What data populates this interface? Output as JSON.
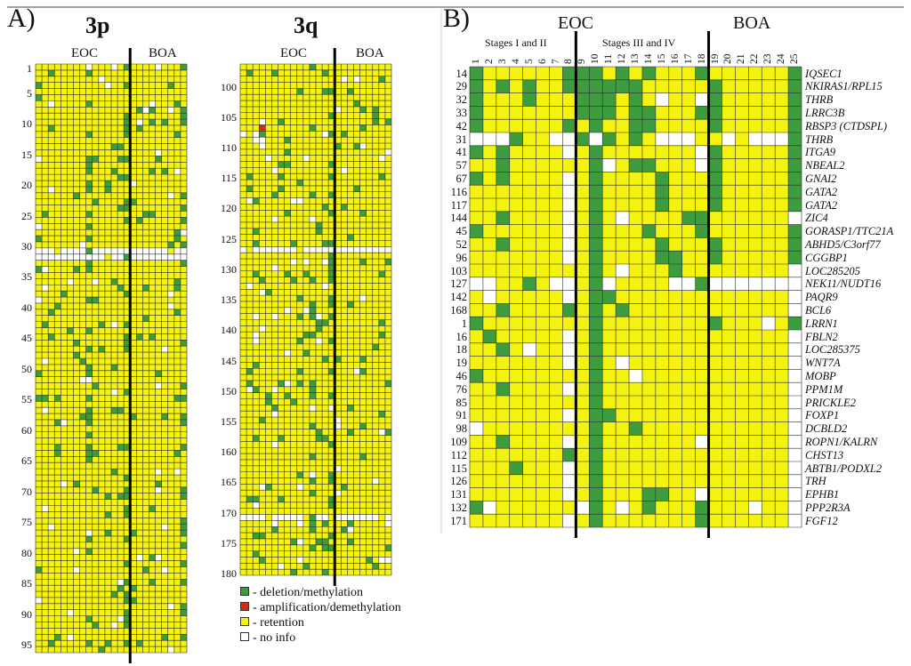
{
  "colors": {
    "deletion": "#3d9c3d",
    "amplification": "#d42a1c",
    "retention": "#f4f20f",
    "noinfo": "#ffffff",
    "grid": "#2b2b2b"
  },
  "panelA": {
    "label": "A)",
    "chart3p": {
      "title": "3p",
      "groups": {
        "eoc": "EOC",
        "boa": "BOA"
      },
      "row_ticks": [
        "1",
        "5",
        "10",
        "15",
        "20",
        "25",
        "30",
        "35",
        "40",
        "45",
        "50",
        "55",
        "60",
        "65",
        "70",
        "75",
        "80",
        "85",
        "90",
        "95"
      ],
      "rows": 96,
      "cols": 24,
      "divider_after_col": 15
    },
    "chart3q": {
      "title": "3q",
      "groups": {
        "eoc": "EOC",
        "boa": "BOA"
      },
      "row_ticks": [
        "100",
        "105",
        "110",
        "115",
        "120",
        "125",
        "130",
        "135",
        "140",
        "145",
        "150",
        "155",
        "160",
        "165",
        "170",
        "175",
        "180"
      ],
      "rows": 84,
      "cols": 24,
      "divider_after_col": 15
    },
    "legend": [
      {
        "key": "deletion",
        "label": "- deletion/methylation"
      },
      {
        "key": "amplification",
        "label": "- amplification/demethylation"
      },
      {
        "key": "retention",
        "label": "- retention"
      },
      {
        "key": "noinfo",
        "label": "- no info"
      }
    ]
  },
  "panelB": {
    "label": "B)",
    "groups": {
      "eoc": "EOC",
      "boa": "BOA"
    },
    "stages": {
      "early": "Stages I and II",
      "late": "Stages III and IV"
    },
    "columns": [
      "1",
      "2",
      "3",
      "4",
      "5",
      "6",
      "7",
      "8",
      "9",
      "10",
      "11",
      "12",
      "13",
      "14",
      "15",
      "16",
      "17",
      "18",
      "19",
      "20",
      "21",
      "22",
      "23",
      "24",
      "25"
    ],
    "rows": [
      {
        "id": "14",
        "gene": "IQSEC1",
        "cells": "GYYYYYYGGGYGYGYYYGYYYYYYG"
      },
      {
        "id": "29",
        "gene": "NKIRAS1/RPL15",
        "cells": "GYGYGYYGGGGGGYYYYYGYYYYYG"
      },
      {
        "id": "32",
        "gene": "THRB",
        "cells": "GYYYGYYYGGGYGYNYYNGYYYYYG"
      },
      {
        "id": "33",
        "gene": "LRRC3B",
        "cells": "GYYYYYYYGGGYGGYYYGGYYYYYG"
      },
      {
        "id": "42",
        "gene": "RBSP3 (CTDSPL)",
        "cells": "GYYYYYYGYGYYGGYYYYGYYYYYG"
      },
      {
        "id": "31",
        "gene": "THRB",
        "cells": "NNNGYYNNGNGYGYNNNYYNYNNNG"
      },
      {
        "id": "41",
        "gene": "ITGA9",
        "cells": "GYGYYYYNYGYYYYYYYNGYYYYYG"
      },
      {
        "id": "57",
        "gene": "NBEAL2",
        "cells": "YYGYYYYYYGNYGGYYYNGYYYYYG"
      },
      {
        "id": "67",
        "gene": "GNAI2",
        "cells": "GYGYYYYNYGYYYYGYYYGYYYYYG"
      },
      {
        "id": "116",
        "gene": "GATA2",
        "cells": "YYYYYYYNYGYYYYGYYYGYYYYYG"
      },
      {
        "id": "117",
        "gene": "GATA2",
        "cells": "YYYYYYYNYGYYYYGYYYGYYYYYG"
      },
      {
        "id": "144",
        "gene": "ZIC4",
        "cells": "YYGYYYYNYGYNYYYYGGYYYYYYN"
      },
      {
        "id": "45",
        "gene": "GORASP1/TTC21A",
        "cells": "GYYYYYYNYGYYYGYYYGYYYYYYG"
      },
      {
        "id": "52",
        "gene": "ABHD5/C3orf77",
        "cells": "YYGYYYYNYGYYYYGYYYGYYYYYG"
      },
      {
        "id": "96",
        "gene": "CGGBP1",
        "cells": "YYYYYYYNYGYYYYGGYYGYYYYYG"
      },
      {
        "id": "103",
        "gene": "LOC285205",
        "cells": "YYYYYYYYYGYNYYYGYYYYYYYYN"
      },
      {
        "id": "127",
        "gene": "NEK11/NUDT16",
        "cells": "NNYYGYNNYGNYYYYNNGNNNNNNN"
      },
      {
        "id": "142",
        "gene": "PAQR9",
        "cells": "YNYYYYYNYGGYYYYYYYYYYYYYN"
      },
      {
        "id": "168",
        "gene": "BCL6",
        "cells": "YYGYYYYGYGYGYYYYYYYYYYYYN"
      },
      {
        "id": "1",
        "gene": "LRRN1",
        "cells": "GYYYYYYYYGYYYYYYYYGYYYNYG"
      },
      {
        "id": "16",
        "gene": "FBLN2",
        "cells": "YGYYYYYNYGYYYYYYYYYYYYYYN"
      },
      {
        "id": "18",
        "gene": "LOC285375",
        "cells": "YYGYNYYNYGYYYYYYYYYYYYYYN"
      },
      {
        "id": "19",
        "gene": "WNT7A",
        "cells": "YYYYYYYNYGYNYYYYYYYYYYYYN"
      },
      {
        "id": "46",
        "gene": "MOBP",
        "cells": "GYYYYYYYYGYYNYYYYYYYYYYYN"
      },
      {
        "id": "76",
        "gene": "PPM1M",
        "cells": "YYGYYYYNYGYYYYYYYYYYYYYYN"
      },
      {
        "id": "85",
        "gene": "PRICKLE2",
        "cells": "YYYYYYYYYGYYYYYYYYYYYYYYN"
      },
      {
        "id": "91",
        "gene": "FOXP1",
        "cells": "YYYYYYYNYGGYYYYYYYYYYYYYN"
      },
      {
        "id": "98",
        "gene": "DCBLD2",
        "cells": "NYYYYYYYYGYYGYYYYYYYYYYYN"
      },
      {
        "id": "109",
        "gene": "ROPN1/KALRN",
        "cells": "YYGYYYYNYGYYYYYYYNYYYYYYN"
      },
      {
        "id": "112",
        "gene": "CHST13",
        "cells": "YYYYYYYGYGYYYYYYYYYYYYYYN"
      },
      {
        "id": "115",
        "gene": "ABTB1/PODXL2",
        "cells": "YYYGYYYNYGYYYYYYYYYYYYYYN"
      },
      {
        "id": "126",
        "gene": "TRH",
        "cells": "YYYYYYYNYGYYYYYYYYYYYYYYN"
      },
      {
        "id": "131",
        "gene": "EPHB1",
        "cells": "YYYYYYYNYGYYYGGYYNYYYYYYN"
      },
      {
        "id": "132",
        "gene": "PPP2R3A",
        "cells": "GNYYYYYYNGYNYGYYYGYYYNYYN"
      },
      {
        "id": "171",
        "gene": "FGF12",
        "cells": "YYYYYYYNYGYYYYYYYGYYYYYYN"
      }
    ]
  }
}
